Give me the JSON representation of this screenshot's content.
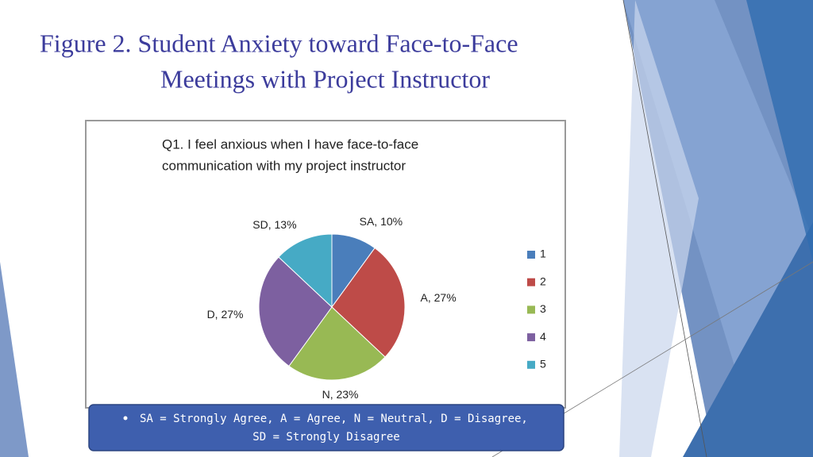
{
  "slide_title": [
    "Figure 2. Student Anxiety toward Face-to-Face",
    "Meetings with Project Instructor"
  ],
  "chart_data": {
    "type": "pie",
    "title": [
      "Q1. I feel anxious when I have face-to-face",
      "communication with my project instructor"
    ],
    "categories": [
      "1",
      "2",
      "3",
      "4",
      "5"
    ],
    "values": [
      10,
      27,
      23,
      27,
      13
    ],
    "value_labels": [
      "SA, 10%",
      "A, 27%",
      "N, 23%",
      "D, 27%",
      "SD, 13%"
    ],
    "colors": [
      "#4a7ebb",
      "#be4b48",
      "#98b954",
      "#7d60a0",
      "#46aac5"
    ],
    "legend": "right"
  },
  "note": "SA = Strongly Agree, A = Agree, N = Neutral, D = Disagree, SD = Strongly Disagree"
}
